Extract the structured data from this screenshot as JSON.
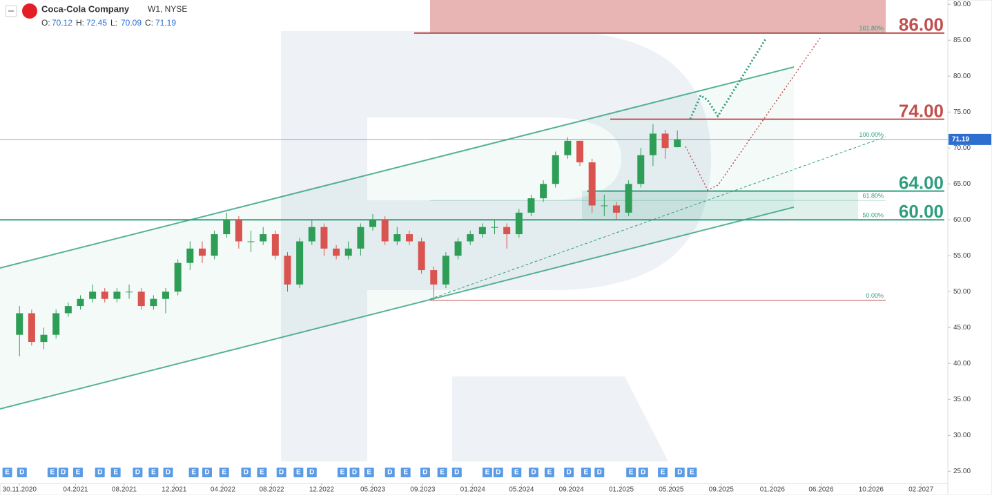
{
  "chart_data": {
    "type": "candlestick",
    "title": "Coca-Cola Company",
    "subtitle": "W1, NYSE",
    "header_labels": [
      "O:",
      "H:",
      "L:",
      "C:"
    ],
    "up_color": "#2e9e57",
    "down_color": "#d9534f",
    "x": [
      0,
      1,
      2,
      3,
      4,
      5,
      6,
      7,
      8,
      9,
      10,
      11,
      12,
      13,
      14,
      15,
      16,
      17,
      18,
      19,
      20,
      21,
      22,
      23,
      24,
      25,
      26,
      27,
      28,
      29,
      30,
      31,
      32,
      33,
      34,
      35,
      36,
      37,
      38,
      39,
      40,
      41,
      42,
      43,
      44,
      45,
      46,
      47,
      48,
      49,
      50,
      51,
      52,
      53,
      54
    ],
    "open": [
      44,
      47,
      43,
      44,
      47,
      48,
      49,
      50,
      49,
      50,
      50,
      48,
      49,
      50,
      54,
      56,
      55,
      58,
      60,
      57,
      57,
      58,
      55,
      51,
      57,
      59,
      56,
      55,
      56,
      59,
      60,
      57,
      58,
      57,
      53,
      51,
      55,
      57,
      58,
      59,
      59,
      58,
      61,
      63,
      65,
      69,
      71,
      68,
      62,
      62,
      61,
      65,
      69,
      72,
      70.12
    ],
    "high": [
      48,
      47.5,
      45,
      47.5,
      48.5,
      49.5,
      51,
      50.5,
      50.5,
      51,
      50.5,
      49.5,
      50.5,
      54.5,
      57,
      57,
      58.5,
      61,
      60.5,
      58.5,
      59,
      58.5,
      55.5,
      57.5,
      60,
      59.5,
      56.5,
      57,
      59.5,
      60.8,
      60.5,
      59,
      58.5,
      57.5,
      53.5,
      55.5,
      57.5,
      58.5,
      59.5,
      60,
      59.5,
      61.5,
      63.5,
      65.5,
      69.5,
      71.5,
      71,
      68.5,
      63.5,
      62.5,
      65.5,
      70,
      73.3,
      72.5,
      72.45
    ],
    "low": [
      41,
      42.5,
      42,
      43.5,
      46.5,
      47.5,
      48.5,
      48.5,
      48.5,
      49,
      47.5,
      47.5,
      47,
      49.5,
      53,
      54,
      54.5,
      57.5,
      56,
      55.5,
      56.5,
      54.5,
      50,
      50.5,
      56.5,
      55,
      54.5,
      54.5,
      55,
      58.5,
      56.5,
      56.5,
      56.5,
      52.5,
      48.8,
      50.5,
      54.5,
      56.5,
      57.5,
      58,
      56,
      57.5,
      60.5,
      62.5,
      64.5,
      68.5,
      67.5,
      61,
      60.5,
      60,
      60.5,
      64.5,
      67.5,
      68.5,
      70.09
    ],
    "close": [
      47,
      43,
      44,
      47,
      48,
      49,
      50,
      49,
      50,
      50,
      48,
      49,
      50,
      54,
      56,
      55,
      58,
      60,
      57,
      57,
      58,
      55,
      51,
      57,
      59,
      56,
      55,
      56,
      59,
      60,
      57,
      58,
      57,
      53,
      51,
      55,
      57,
      58,
      59,
      59,
      58,
      61,
      63,
      65,
      69,
      71,
      68,
      62,
      62,
      61,
      65,
      69,
      72,
      70,
      71.19
    ],
    "xlim": [
      -1.6,
      76.2
    ],
    "xticks": [
      {
        "value": 0,
        "label": "30.11.2020"
      },
      {
        "value": 4.6,
        "label": "04.2021"
      },
      {
        "value": 8.6,
        "label": "08.2021"
      },
      {
        "value": 12.7,
        "label": "12.2021"
      },
      {
        "value": 16.7,
        "label": "04.2022"
      },
      {
        "value": 20.7,
        "label": "08.2022"
      },
      {
        "value": 24.8,
        "label": "12.2022"
      },
      {
        "value": 29,
        "label": "05.2023"
      },
      {
        "value": 33.1,
        "label": "09.2023"
      },
      {
        "value": 37.2,
        "label": "01.2024"
      },
      {
        "value": 41.2,
        "label": "05.2024"
      },
      {
        "value": 45.3,
        "label": "09.2024"
      },
      {
        "value": 49.4,
        "label": "01.2025"
      },
      {
        "value": 53.5,
        "label": "05.2025"
      },
      {
        "value": 57.6,
        "label": "09.2025"
      },
      {
        "value": 61.8,
        "label": "01.2026"
      },
      {
        "value": 65.8,
        "label": "06.2026"
      },
      {
        "value": 69.9,
        "label": "10.2026"
      },
      {
        "value": 74,
        "label": "02.2027"
      }
    ],
    "ylim": [
      23.3,
      90.6
    ],
    "yticks": [
      {
        "value": 25,
        "label": "25.00"
      },
      {
        "value": 30,
        "label": "30.00"
      },
      {
        "value": 35,
        "label": "35.00"
      },
      {
        "value": 40,
        "label": "40.00"
      },
      {
        "value": 45,
        "label": "45.00"
      },
      {
        "value": 50,
        "label": "50.00"
      },
      {
        "value": 55,
        "label": "55.00"
      },
      {
        "value": 60,
        "label": "60.00"
      },
      {
        "value": 65,
        "label": "65.00"
      },
      {
        "value": 70,
        "label": "70.00"
      },
      {
        "value": 75,
        "label": "75.00"
      },
      {
        "value": 80,
        "label": "80.00"
      },
      {
        "value": 85,
        "label": "85.00"
      },
      {
        "value": 90,
        "label": "90.00"
      }
    ],
    "levels": [
      {
        "value": 86,
        "label": "86.00",
        "color": "#c0504d"
      },
      {
        "value": 74,
        "label": "74.00",
        "color": "#c0504d"
      },
      {
        "value": 64,
        "label": "64.00",
        "color": "#2e9e7e"
      },
      {
        "value": 60,
        "label": "60.00",
        "color": "#2e9e7e"
      }
    ],
    "fib_levels": [
      {
        "value": 86,
        "label": "161.80%"
      },
      {
        "value": 71.2,
        "label": "100.00%"
      },
      {
        "value": 62.7,
        "label": "61.80%"
      },
      {
        "value": 60,
        "label": "50.00%"
      },
      {
        "value": 48.8,
        "label": "0.00%"
      }
    ],
    "events": [
      {
        "x": -1,
        "label": "E"
      },
      {
        "x": 0.2,
        "label": "D"
      },
      {
        "x": 2.7,
        "label": "E"
      },
      {
        "x": 3.6,
        "label": "D"
      },
      {
        "x": 4.8,
        "label": "E"
      },
      {
        "x": 6.6,
        "label": "D"
      },
      {
        "x": 7.9,
        "label": "E"
      },
      {
        "x": 9.7,
        "label": "D"
      },
      {
        "x": 11,
        "label": "E"
      },
      {
        "x": 12.2,
        "label": "D"
      },
      {
        "x": 14.3,
        "label": "E"
      },
      {
        "x": 15.4,
        "label": "D"
      },
      {
        "x": 16.8,
        "label": "E"
      },
      {
        "x": 18.6,
        "label": "D"
      },
      {
        "x": 19.9,
        "label": "E"
      },
      {
        "x": 21.5,
        "label": "D"
      },
      {
        "x": 22.9,
        "label": "E"
      },
      {
        "x": 24,
        "label": "D"
      },
      {
        "x": 26.5,
        "label": "E"
      },
      {
        "x": 27.5,
        "label": "D"
      },
      {
        "x": 28.7,
        "label": "E"
      },
      {
        "x": 30.4,
        "label": "D"
      },
      {
        "x": 31.7,
        "label": "E"
      },
      {
        "x": 33.3,
        "label": "D"
      },
      {
        "x": 34.7,
        "label": "E"
      },
      {
        "x": 35.9,
        "label": "D"
      },
      {
        "x": 38.4,
        "label": "E"
      },
      {
        "x": 39.3,
        "label": "D"
      },
      {
        "x": 40.8,
        "label": "E"
      },
      {
        "x": 42.2,
        "label": "D"
      },
      {
        "x": 43.5,
        "label": "E"
      },
      {
        "x": 45.1,
        "label": "D"
      },
      {
        "x": 46.5,
        "label": "E"
      },
      {
        "x": 47.6,
        "label": "D"
      },
      {
        "x": 50.2,
        "label": "E"
      },
      {
        "x": 51.2,
        "label": "D"
      },
      {
        "x": 52.8,
        "label": "E"
      },
      {
        "x": 54.2,
        "label": "D"
      },
      {
        "x": 55.2,
        "label": "E"
      }
    ]
  }
}
